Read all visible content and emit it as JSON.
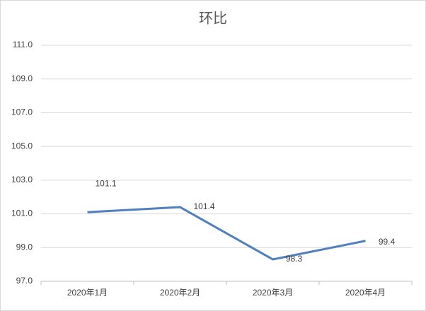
{
  "chart_data": {
    "type": "line",
    "title": "环比",
    "categories": [
      "2020年1月",
      "2020年2月",
      "2020年3月",
      "2020年4月"
    ],
    "series": [
      {
        "name": "环比",
        "color": "#4f7fbd",
        "values": [
          101.1,
          101.4,
          98.3,
          99.4
        ]
      }
    ],
    "ylim": [
      97,
      111
    ],
    "yticks": [
      {
        "value": 97,
        "label": "97.0"
      },
      {
        "value": 99,
        "label": "99.0"
      },
      {
        "value": 101,
        "label": "101.0"
      },
      {
        "value": 103,
        "label": "103.0"
      },
      {
        "value": 105,
        "label": "105.0"
      },
      {
        "value": 107,
        "label": "107.0"
      },
      {
        "value": 109,
        "label": "109.0"
      },
      {
        "value": 111,
        "label": "111.0"
      }
    ],
    "grid": true
  }
}
